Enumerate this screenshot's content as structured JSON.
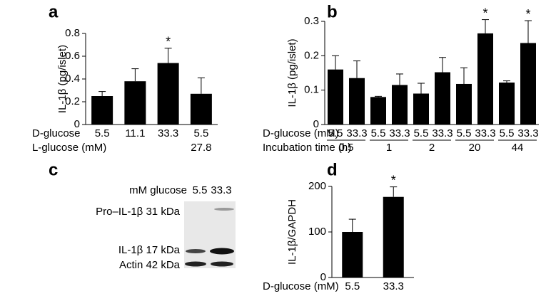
{
  "chart_data": [
    {
      "type": "bar",
      "panel": "a",
      "ylabel": "IL-1β (pg/islet)",
      "categories": [
        "5.5",
        "11.1",
        "33.3",
        "5.5"
      ],
      "category_label": "D-glucose",
      "categories2": [
        null,
        null,
        null,
        "27.8"
      ],
      "category2_label": "L-glucose (mM)",
      "values": [
        0.25,
        0.38,
        0.54,
        0.27
      ],
      "errors": [
        0.04,
        0.11,
        0.13,
        0.14
      ],
      "markers": [
        null,
        null,
        "*",
        null
      ],
      "color": "#000000",
      "ylim": [
        0,
        0.8
      ],
      "yticks": [
        0,
        0.2,
        0.4,
        0.6,
        0.8
      ]
    },
    {
      "type": "bar",
      "panel": "b",
      "ylabel": "IL-1β (pg/islet)",
      "categories": [
        "5.5",
        "33.3",
        "5.5",
        "33.3",
        "5.5",
        "33.3",
        "5.5",
        "33.3",
        "5.5",
        "33.3"
      ],
      "category_label": "D-glucose (mM)",
      "groups": [
        "0.5",
        "1",
        "2",
        "20",
        "44"
      ],
      "group_label": "Incubation time (h)",
      "values": [
        0.16,
        0.135,
        0.08,
        0.115,
        0.09,
        0.152,
        0.118,
        0.265,
        0.122,
        0.237
      ],
      "errors": [
        0.04,
        0.05,
        0.002,
        0.032,
        0.03,
        0.043,
        0.047,
        0.04,
        0.005,
        0.065
      ],
      "markers": [
        null,
        null,
        null,
        null,
        null,
        null,
        null,
        "*",
        null,
        "*"
      ],
      "color": "#000000",
      "ylim": [
        0,
        0.3
      ],
      "yticks": [
        0,
        0.1,
        0.2,
        0.3
      ]
    },
    {
      "type": "bar",
      "panel": "d",
      "ylabel": "IL-1β/GAPDH",
      "categories": [
        "5.5",
        "33.3"
      ],
      "category_label": "D-glucose (mM)",
      "values": [
        100,
        177
      ],
      "errors": [
        28,
        22
      ],
      "markers": [
        null,
        "*"
      ],
      "color": "#000000",
      "ylim": [
        0,
        200
      ],
      "yticks": [
        0,
        100,
        200
      ]
    }
  ],
  "blot": {
    "panel": "c",
    "header": "mM glucose",
    "lanes": [
      "5.5",
      "33.3"
    ],
    "bands": [
      "Pro–IL-1β 31 kDa",
      "IL-1β 17 kDa",
      "Actin 42 kDa"
    ]
  }
}
